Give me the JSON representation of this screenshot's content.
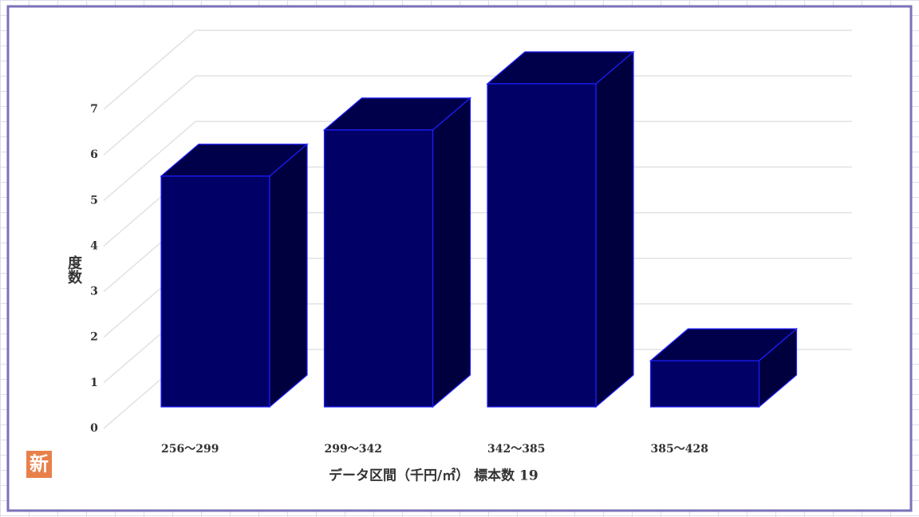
{
  "chart_data": {
    "type": "bar3d",
    "categories": [
      "256〜299",
      "299〜342",
      "342〜385",
      "385〜428"
    ],
    "values": [
      5,
      6,
      7,
      1
    ],
    "color": "#000066",
    "ylim": [
      0,
      7
    ],
    "yticks": [
      0,
      1,
      2,
      3,
      4,
      5,
      6,
      7
    ],
    "grid": true,
    "y_label": "度数",
    "x_label": "データ区間（千円/㎡） 標本数 19",
    "badge": "新"
  }
}
